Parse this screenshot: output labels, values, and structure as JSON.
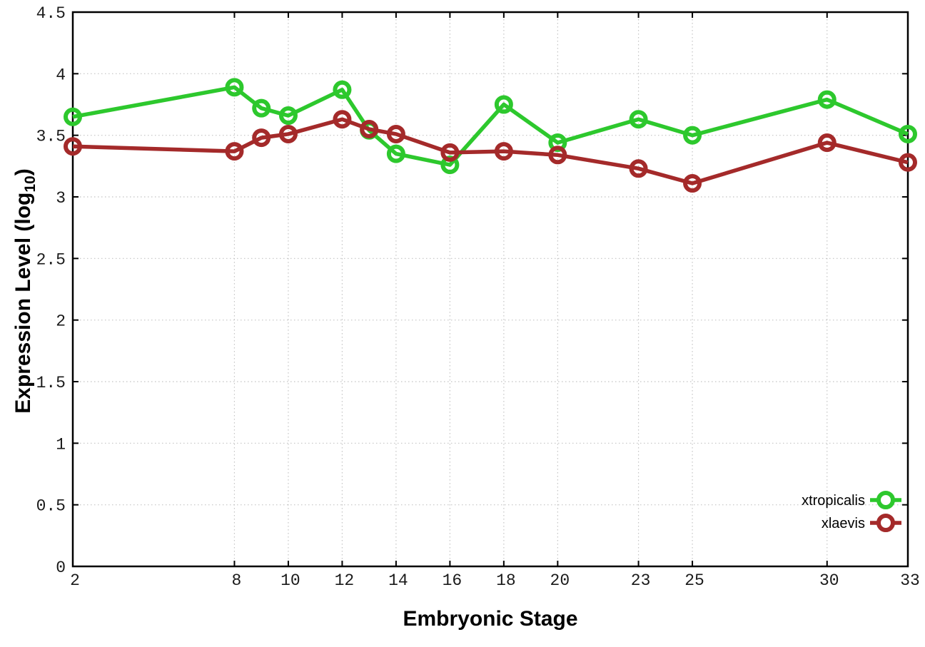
{
  "chart_data": {
    "type": "line",
    "title": "",
    "xlabel": "Embryonic Stage",
    "ylabel": "Expression Level (log10)",
    "ylabel_parts": {
      "main": "Expression Level (log",
      "sub": "10",
      "close": ")"
    },
    "xlim": [
      2,
      33
    ],
    "ylim": [
      0,
      4.5
    ],
    "x_ticks": [
      2,
      8,
      10,
      12,
      14,
      16,
      18,
      20,
      23,
      25,
      30,
      33
    ],
    "y_ticks": [
      0,
      0.5,
      1,
      1.5,
      2,
      2.5,
      3,
      3.5,
      4,
      4.5
    ],
    "y_tick_labels": [
      "0",
      "0.5",
      "1",
      "1.5",
      "2",
      "2.5",
      "3",
      "3.5",
      "4",
      "4.5"
    ],
    "grid": true,
    "legend_position": "bottom-right",
    "marker": "open-circle",
    "x": [
      2,
      8,
      9,
      10,
      12,
      13,
      14,
      16,
      18,
      20,
      23,
      25,
      30,
      33
    ],
    "series": [
      {
        "name": "xtropicalis",
        "color": "#2dc82d",
        "values": [
          3.65,
          3.89,
          3.72,
          3.66,
          3.87,
          3.54,
          3.35,
          3.26,
          3.75,
          3.44,
          3.63,
          3.5,
          3.79,
          3.51
        ]
      },
      {
        "name": "xlaevis",
        "color": "#a42a2a",
        "values": [
          3.41,
          3.37,
          3.48,
          3.51,
          3.63,
          3.55,
          3.51,
          3.36,
          3.37,
          3.34,
          3.23,
          3.11,
          3.44,
          3.28
        ]
      }
    ]
  },
  "colors": {
    "background": "#ffffff",
    "border": "#000000",
    "grid": "#c4c4c4",
    "tick_text": "#1a1a1a"
  }
}
